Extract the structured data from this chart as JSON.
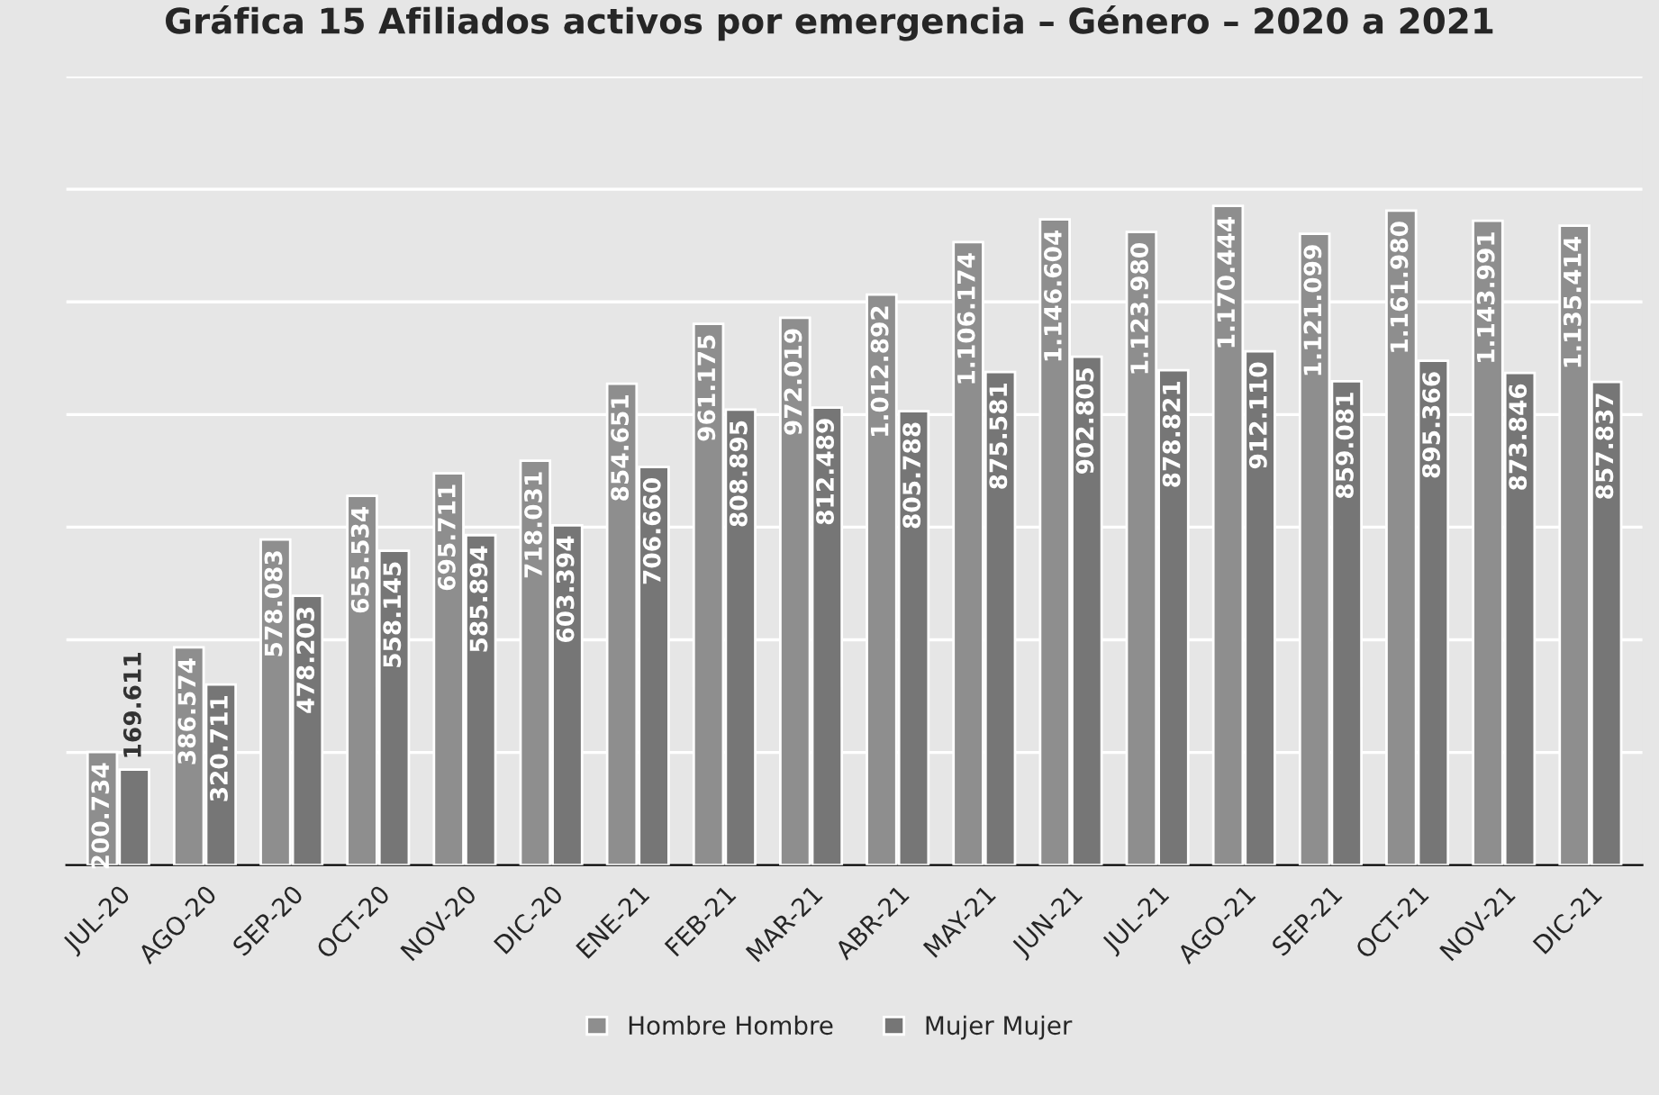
{
  "chart_data": {
    "type": "bar",
    "title": "Gráfica 15 Afiliados activos por emergencia – Género – 2020 a 2021",
    "categories": [
      "JUL-20",
      "AGO-20",
      "SEP-20",
      "OCT-20",
      "NOV-20",
      "DIC-20",
      "ENE-21",
      "FEB-21",
      "MAR-21",
      "ABR-21",
      "MAY-21",
      "JUN-21",
      "JUL-21",
      "AGO-21",
      "SEP-21",
      "OCT-21",
      "NOV-21",
      "DIC-21"
    ],
    "series": [
      {
        "name": "Hombre Hombre",
        "color": "#8e8e8e",
        "values": [
          200734,
          386574,
          578083,
          655534,
          695711,
          718031,
          854651,
          961175,
          972019,
          1012892,
          1106174,
          1146604,
          1123980,
          1170444,
          1121099,
          1161980,
          1143991,
          1135414
        ],
        "value_labels": [
          "200.734",
          "386.574",
          "578.083",
          "655.534",
          "695.711",
          "718.031",
          "854.651",
          "961.175",
          "972.019",
          "1.012.892",
          "1.106.174",
          "1.146.604",
          "1.123.980",
          "1.170.444",
          "1.121.099",
          "1.161.980",
          "1.143.991",
          "1.135.414"
        ]
      },
      {
        "name": "Mujer Mujer",
        "color": "#767676",
        "values": [
          169611,
          320711,
          478203,
          558145,
          585894,
          603394,
          706660,
          808895,
          812489,
          805788,
          875581,
          902805,
          878821,
          912110,
          859081,
          895366,
          873846,
          857837
        ],
        "value_labels": [
          "169.611",
          "320.711",
          "478.203",
          "558.145",
          "585.894",
          "603.394",
          "706.660",
          "808.895",
          "812.489",
          "805.788",
          "875.581",
          "902.805",
          "878.821",
          "912.110",
          "859.081",
          "895.366",
          "873.846",
          "857.837"
        ]
      }
    ],
    "ylim": [
      0,
      1400000
    ],
    "yticks": [
      {
        "value": 0,
        "label": null
      },
      {
        "value": 200000,
        "label": null
      },
      {
        "value": 400000,
        "label": null
      },
      {
        "value": 600000,
        "label": null
      },
      {
        "value": 800000,
        "label": null
      },
      {
        "value": 1000000,
        "label": null
      },
      {
        "value": 1200000,
        "label": null
      },
      {
        "value": 1400000,
        "label": null
      }
    ],
    "tick_labels": "x",
    "grid": "y",
    "legend": "bottom"
  }
}
